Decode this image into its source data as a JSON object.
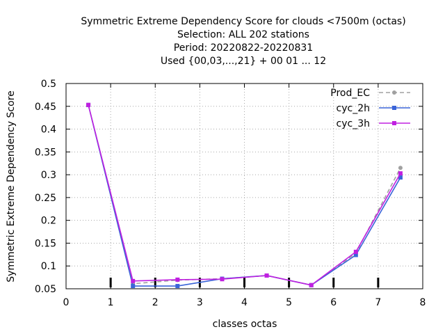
{
  "chart_data": {
    "type": "line",
    "title_lines": [
      "Symmetric Extreme Dependency Score  for clouds <7500m (octas)",
      "Selection: ALL    202 stations",
      "Period: 20220822-20220831",
      "Used {00,03,...,21} + 00 01 ... 12"
    ],
    "xlabel": "classes octas",
    "ylabel": "Symmetric Extreme Dependency Score",
    "xlim": [
      0,
      8
    ],
    "ylim": [
      0.05,
      0.5
    ],
    "xticks": [
      "0",
      "1",
      "2",
      "3",
      "4",
      "5",
      "6",
      "7",
      "8"
    ],
    "yticks": [
      "0.05",
      "0.1",
      "0.15",
      "0.2",
      "0.25",
      "0.3",
      "0.35",
      "0.4",
      "0.45",
      "0.5"
    ],
    "grid": true,
    "legend_position": "top-right",
    "x": [
      0.5,
      1.5,
      2.5,
      3.5,
      4.5,
      5.5,
      6.5,
      7.5
    ],
    "series": [
      {
        "name": "Prod_EC",
        "color": "#a0a0a0",
        "dashed": true,
        "marker": "circle",
        "values": [
          0.453,
          0.061,
          0.069,
          0.072,
          0.079,
          0.058,
          0.128,
          0.315
        ]
      },
      {
        "name": "cyc_2h",
        "color": "#3a64d8",
        "dashed": false,
        "marker": "square",
        "values": [
          0.453,
          0.056,
          0.056,
          0.072,
          0.079,
          0.058,
          0.124,
          0.294
        ]
      },
      {
        "name": "cyc_3h",
        "color": "#c020e0",
        "dashed": false,
        "marker": "square",
        "values": [
          0.453,
          0.067,
          0.07,
          0.071,
          0.079,
          0.058,
          0.131,
          0.303
        ]
      }
    ],
    "baseline_markers": [
      1,
      2,
      3,
      4,
      5,
      6,
      7
    ]
  }
}
